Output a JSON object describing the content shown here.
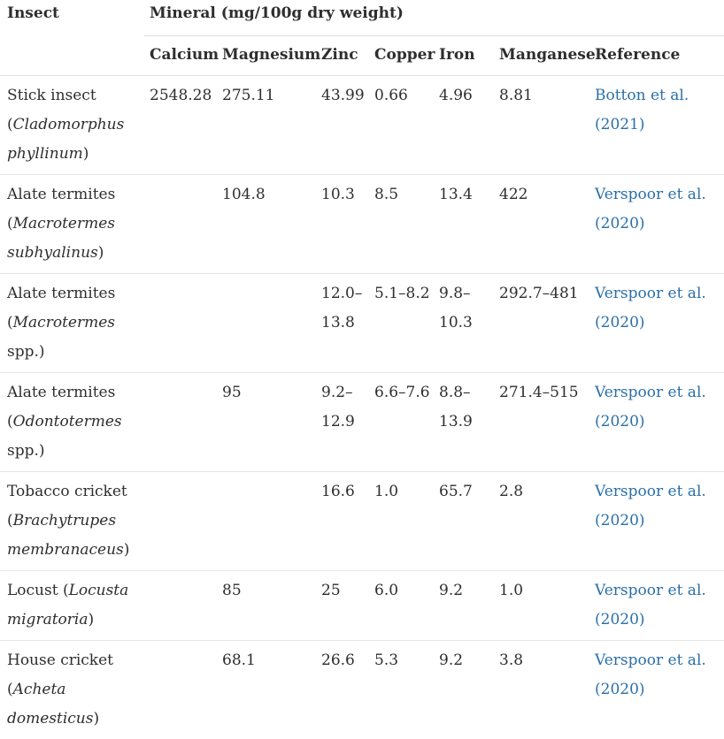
{
  "header": {
    "insect": "Insect",
    "mineral": "Mineral (mg/100g dry weight)",
    "columns": [
      "Calcium",
      "Magnesium",
      "Zinc",
      "Copper",
      "Iron",
      "Manganese",
      "Reference"
    ]
  },
  "rows": [
    {
      "common": "Stick insect (",
      "species": "Cladomorphus phyllinum",
      "close": ")",
      "calcium": "2548.28",
      "magnesium": "275.11",
      "zinc": "43.99",
      "copper": "0.66",
      "iron": "4.96",
      "manganese": "8.81",
      "reference": "Botton et al. (2021)"
    },
    {
      "common": "Alate termites (",
      "species": "Macrotermes subhyalinus",
      "close": ")",
      "calcium": "",
      "magnesium": "104.8",
      "zinc": "10.3",
      "copper": "8.5",
      "iron": "13.4",
      "manganese": "422",
      "reference": "Verspoor et al. (2020)"
    },
    {
      "common": "Alate termites (",
      "species": "Macrotermes",
      "close": " spp.)",
      "calcium": "",
      "magnesium": "",
      "zinc": "12.0–13.8",
      "copper": "5.1–8.2",
      "iron": "9.8–10.3",
      "manganese": "292.7–481",
      "reference": "Verspoor et al. (2020)"
    },
    {
      "common": "Alate termites (",
      "species": "Odontotermes",
      "close": " spp.)",
      "calcium": "",
      "magnesium": "95",
      "zinc": "9.2–12.9",
      "copper": "6.6–7.6",
      "iron": "8.8–13.9",
      "manganese": "271.4–515",
      "reference": "Verspoor et al. (2020)"
    },
    {
      "common": "Tobacco cricket (",
      "species": "Brachytrupes membranaceus",
      "close": ")",
      "calcium": "",
      "magnesium": "",
      "zinc": "16.6",
      "copper": "1.0",
      "iron": "65.7",
      "manganese": "2.8",
      "reference": "Verspoor et al. (2020)"
    },
    {
      "common": "Locust (",
      "species": "Locusta migratoria",
      "close": ")",
      "calcium": "",
      "magnesium": "85",
      "zinc": "25",
      "copper": "6.0",
      "iron": "9.2",
      "manganese": "1.0",
      "reference": "Verspoor et al. (2020)"
    },
    {
      "common": "House cricket (",
      "species": "Acheta domesticus",
      "close": ")",
      "calcium": "",
      "magnesium": "68.1",
      "zinc": "26.6",
      "copper": "5.3",
      "iron": "9.2",
      "manganese": "3.8",
      "reference": "Verspoor et al. (2020)"
    }
  ]
}
